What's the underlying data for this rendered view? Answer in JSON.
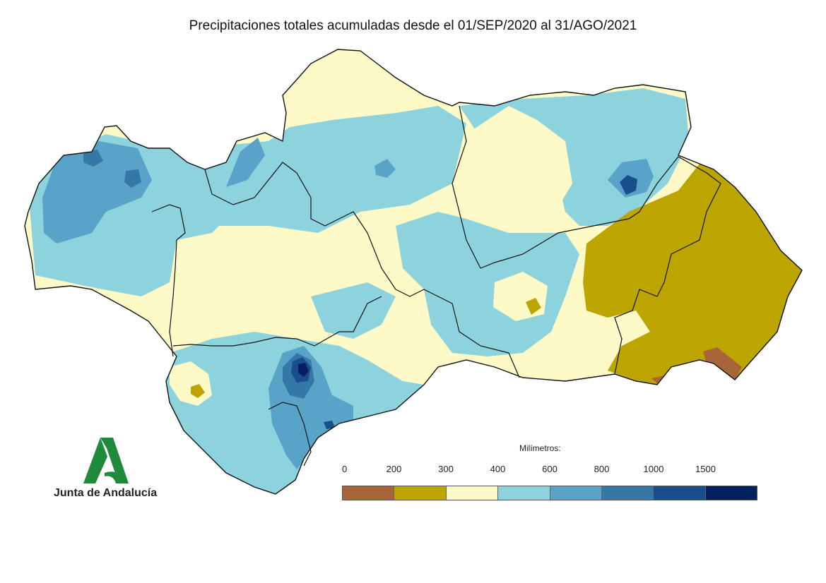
{
  "title": "Precipitaciones totales acumuladas desde el 01/SEP/2020 al 31/AGO/2021",
  "logo": {
    "text": "Junta de Andalucía"
  },
  "legend": {
    "title": "Milímetros:",
    "ticks": [
      "0",
      "200",
      "300",
      "400",
      "600",
      "800",
      "1000",
      "1500"
    ],
    "colors": [
      "#a8653a",
      "#bda500",
      "#fdfac8",
      "#8dd3de",
      "#5aa3c8",
      "#3478a8",
      "#184e8c",
      "#052060"
    ]
  },
  "map_palette": {
    "very_dry": "#a8653a",
    "dry": "#bda500",
    "low": "#fdfac8",
    "mid": "#8dd3de",
    "high": "#5aa3c8",
    "higher": "#3478a8",
    "very_high": "#184e8c",
    "extreme": "#052060"
  }
}
